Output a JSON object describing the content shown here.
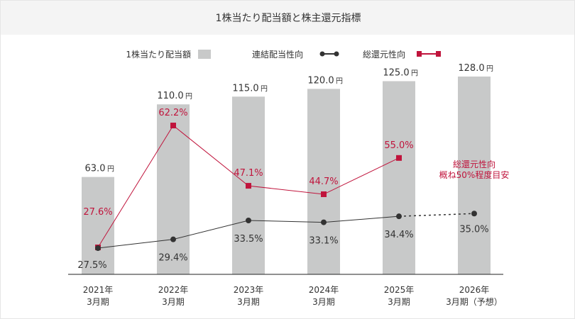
{
  "chart_data": {
    "type": "bar",
    "title": "1株当たり配当額と株主還元指標",
    "legend": [
      "1株当たり配当額",
      "連結配当性向",
      "総還元性向"
    ],
    "legend_position": "top",
    "categories": [
      [
        "2021年",
        "3月期"
      ],
      [
        "2022年",
        "3月期"
      ],
      [
        "2023年",
        "3月期"
      ],
      [
        "2024年",
        "3月期"
      ],
      [
        "2025年",
        "3月期"
      ],
      [
        "2026年",
        "3月期（予想）"
      ]
    ],
    "unit": "円",
    "series": [
      {
        "name": "1株当たり配当額",
        "type": "bar",
        "values": [
          63.0,
          110.0,
          115.0,
          120.0,
          125.0,
          128.0
        ],
        "labels": [
          "63.0",
          "110.0",
          "115.0",
          "120.0",
          "125.0",
          "128.0"
        ],
        "color": "#c8c9c9"
      },
      {
        "name": "連結配当性向",
        "type": "line",
        "values": [
          27.5,
          29.4,
          33.5,
          33.1,
          34.4,
          35.0
        ],
        "labels": [
          "27.5%",
          "29.4%",
          "33.5%",
          "33.1%",
          "34.4%",
          "35.0%"
        ],
        "color": "#333333",
        "forecast_dashed_last": true
      },
      {
        "name": "総還元性向",
        "type": "line",
        "values": [
          27.6,
          62.2,
          47.1,
          44.7,
          55.0,
          null
        ],
        "labels": [
          "27.6%",
          "62.2%",
          "47.1%",
          "44.7%",
          "55.0%",
          ""
        ],
        "color": "#c0143c"
      }
    ],
    "annotation": [
      "総還元性向",
      "概ね50%程度目安"
    ],
    "grid": false
  }
}
